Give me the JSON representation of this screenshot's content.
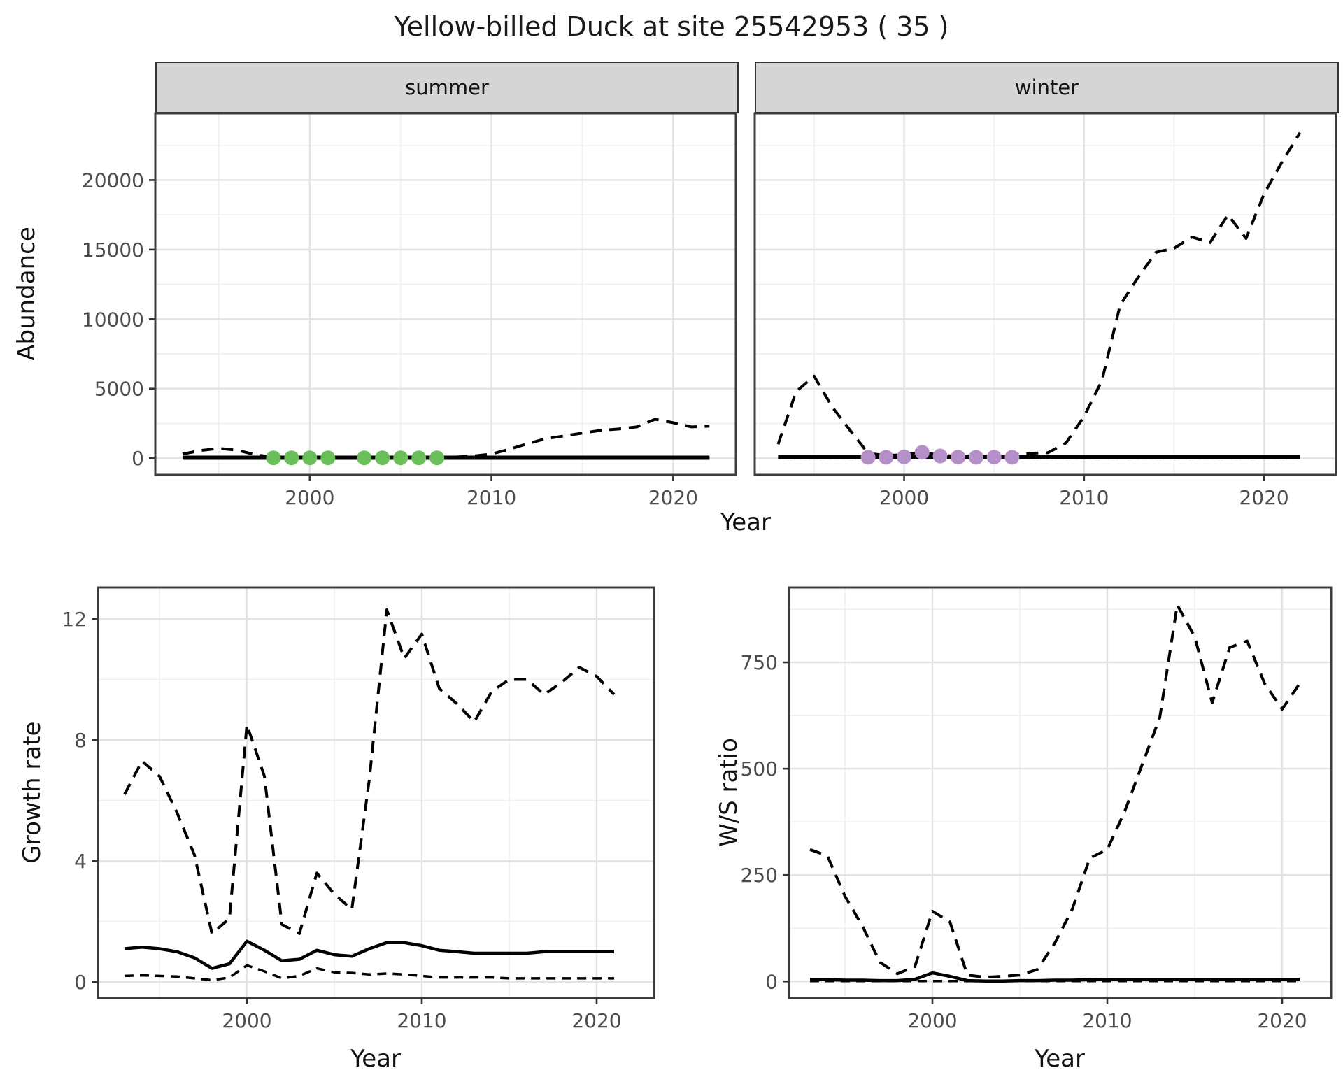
{
  "title": "Yellow-billed Duck at site 25542953 ( 35 )",
  "colors": {
    "line": "#000000",
    "summer_points": "#6abf5a",
    "winter_points": "#b48fc8",
    "strip_bg": "#d5d5d5",
    "grid_major": "#e3e3e3",
    "grid_minor": "#f1f1f1",
    "frame": "#3c3c3c",
    "tick": "#333333",
    "tick_label": "#4d4d4d"
  },
  "chart_data": [
    {
      "type": "line",
      "name": "abundance-by-season",
      "ylabel": "Abundance",
      "xlabel": "Year",
      "grid": true,
      "x_ticks": [
        2000,
        2010,
        2020
      ],
      "x_minor": [
        1995,
        2005,
        2015
      ],
      "y_ticks": [
        0,
        5000,
        10000,
        15000,
        20000
      ],
      "y_minor": [
        2500,
        7500,
        12500,
        17500,
        22500
      ],
      "ylim": [
        -1200,
        24800
      ],
      "years": [
        1993,
        1994,
        1995,
        1996,
        1997,
        1998,
        1999,
        2000,
        2001,
        2002,
        2003,
        2004,
        2005,
        2006,
        2007,
        2008,
        2009,
        2010,
        2011,
        2012,
        2013,
        2014,
        2015,
        2016,
        2017,
        2018,
        2019,
        2020,
        2021,
        2022
      ],
      "facets": [
        {
          "label": "summer",
          "xlim": [
            1991.5,
            2023.45
          ],
          "point_color": "#6abf5a",
          "upper_ci": [
            300,
            550,
            700,
            580,
            250,
            70,
            40,
            40,
            60,
            40,
            40,
            50,
            50,
            50,
            60,
            80,
            150,
            300,
            650,
            1050,
            1400,
            1600,
            1800,
            2000,
            2100,
            2250,
            2800,
            2550,
            2250,
            2300
          ],
          "median": [
            30,
            30,
            30,
            30,
            30,
            30,
            30,
            30,
            30,
            30,
            30,
            30,
            30,
            30,
            30,
            30,
            30,
            30,
            30,
            30,
            30,
            30,
            30,
            30,
            30,
            30,
            30,
            30,
            30,
            30
          ],
          "lower_ci": [
            2,
            2,
            2,
            2,
            2,
            2,
            2,
            2,
            2,
            2,
            2,
            2,
            2,
            2,
            2,
            2,
            2,
            2,
            2,
            2,
            2,
            2,
            2,
            2,
            2,
            2,
            2,
            2,
            2,
            2
          ],
          "obs_years": [
            1998,
            1999,
            2000,
            2001,
            2003,
            2004,
            2005,
            2006,
            2007
          ],
          "obs_values": [
            20,
            20,
            20,
            20,
            20,
            20,
            20,
            20,
            20
          ]
        },
        {
          "label": "winter",
          "xlim": [
            1991.7,
            2024.0
          ],
          "point_color": "#b48fc8",
          "upper_ci": [
            1000,
            4800,
            5900,
            3700,
            2000,
            350,
            200,
            250,
            450,
            200,
            150,
            180,
            200,
            250,
            350,
            400,
            1100,
            3000,
            5600,
            11000,
            13000,
            14800,
            15100,
            15900,
            15500,
            17500,
            15800,
            19000,
            21300,
            23400
          ],
          "median": [
            80,
            80,
            80,
            80,
            80,
            80,
            80,
            80,
            80,
            80,
            80,
            80,
            80,
            80,
            80,
            80,
            80,
            80,
            80,
            80,
            80,
            80,
            80,
            80,
            80,
            80,
            80,
            80,
            80,
            80
          ],
          "lower_ci": [
            5,
            5,
            5,
            5,
            5,
            5,
            5,
            5,
            5,
            5,
            5,
            5,
            5,
            5,
            5,
            5,
            5,
            5,
            5,
            5,
            5,
            5,
            5,
            5,
            5,
            5,
            5,
            5,
            5,
            5
          ],
          "obs_years": [
            1998,
            1999,
            2000,
            2001,
            2002,
            2003,
            2004,
            2005,
            2006
          ],
          "obs_values": [
            60,
            60,
            90,
            420,
            160,
            70,
            60,
            70,
            60
          ]
        }
      ]
    },
    {
      "type": "line",
      "name": "growth-rate",
      "ylabel": "Growth rate",
      "xlabel": "Year",
      "grid": true,
      "x_ticks": [
        2000,
        2010,
        2020
      ],
      "x_minor": [
        1995,
        2005,
        2015
      ],
      "y_ticks": [
        0,
        4,
        8,
        12
      ],
      "y_minor": [
        2,
        6,
        10
      ],
      "xlim": [
        1991.48,
        2023.28
      ],
      "ylim": [
        -0.53,
        13.04
      ],
      "years": [
        1993,
        1994,
        1995,
        1996,
        1997,
        1998,
        1999,
        2000,
        2001,
        2002,
        2003,
        2004,
        2005,
        2006,
        2007,
        2008,
        2009,
        2010,
        2011,
        2012,
        2013,
        2014,
        2015,
        2016,
        2017,
        2018,
        2019,
        2020,
        2021
      ],
      "upper_ci": [
        6.2,
        7.3,
        6.8,
        5.6,
        4.2,
        1.6,
        2.1,
        8.5,
        6.8,
        1.9,
        1.6,
        3.6,
        2.9,
        2.4,
        6.7,
        12.3,
        10.7,
        11.5,
        9.7,
        9.2,
        8.6,
        9.6,
        10.0,
        10.0,
        9.5,
        9.9,
        10.4,
        10.1,
        9.5
      ],
      "median": [
        1.1,
        1.15,
        1.1,
        1.0,
        0.8,
        0.45,
        0.6,
        1.35,
        1.05,
        0.7,
        0.75,
        1.05,
        0.9,
        0.85,
        1.1,
        1.3,
        1.3,
        1.2,
        1.05,
        1.0,
        0.95,
        0.95,
        0.95,
        0.95,
        1.0,
        1.0,
        1.0,
        1.0,
        1.0
      ],
      "lower_ci": [
        0.2,
        0.22,
        0.2,
        0.18,
        0.12,
        0.06,
        0.15,
        0.55,
        0.35,
        0.12,
        0.2,
        0.45,
        0.32,
        0.3,
        0.25,
        0.28,
        0.25,
        0.2,
        0.15,
        0.15,
        0.15,
        0.15,
        0.12,
        0.12,
        0.12,
        0.12,
        0.12,
        0.12,
        0.12
      ]
    },
    {
      "type": "line",
      "name": "ws-ratio",
      "ylabel": "W/S ratio",
      "xlabel": "Year",
      "grid": true,
      "x_ticks": [
        2000,
        2010,
        2020
      ],
      "x_minor": [
        1995,
        2005,
        2015
      ],
      "y_ticks": [
        0,
        250,
        500,
        750
      ],
      "y_minor": [
        125,
        375,
        625,
        875
      ],
      "xlim": [
        1991.8,
        2022.8
      ],
      "ylim": [
        -39,
        926
      ],
      "years": [
        1993,
        1994,
        1995,
        1996,
        1997,
        1998,
        1999,
        2000,
        2001,
        2002,
        2003,
        2004,
        2005,
        2006,
        2007,
        2008,
        2009,
        2010,
        2011,
        2012,
        2013,
        2014,
        2015,
        2016,
        2017,
        2018,
        2019,
        2020,
        2021
      ],
      "upper_ci": [
        310,
        295,
        200,
        130,
        45,
        18,
        35,
        165,
        140,
        15,
        10,
        12,
        15,
        28,
        90,
        170,
        290,
        310,
        400,
        510,
        620,
        885,
        810,
        655,
        785,
        800,
        700,
        640,
        700
      ],
      "median": [
        4,
        4,
        3,
        3,
        2,
        2,
        5,
        20,
        12,
        2,
        1,
        1,
        2,
        2,
        3,
        3,
        4,
        5,
        5,
        5,
        5,
        5,
        5,
        5,
        5,
        5,
        5,
        5,
        5
      ],
      "lower_ci": [
        1,
        1,
        1,
        1,
        1,
        1,
        1,
        1,
        1,
        1,
        1,
        1,
        1,
        1,
        1,
        1,
        1,
        1,
        1,
        1,
        1,
        1,
        1,
        1,
        1,
        1,
        1,
        1,
        1
      ]
    }
  ]
}
